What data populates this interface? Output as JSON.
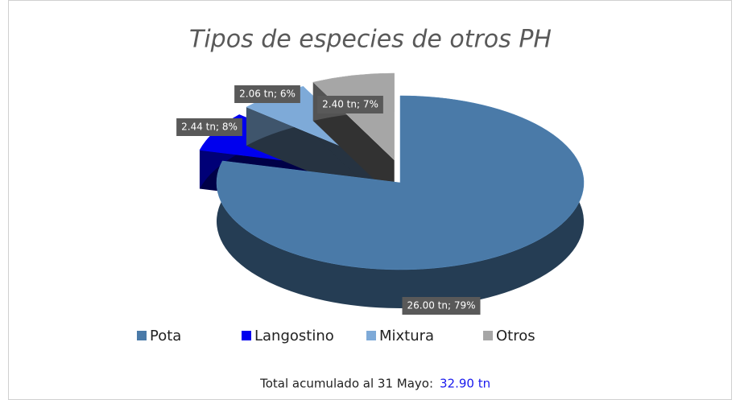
{
  "chart_data": {
    "type": "pie",
    "title": "Tipos de especies de otros PH",
    "categories": [
      "Pota",
      "Langostino",
      "Mixtura",
      "Otros"
    ],
    "values": [
      26.0,
      2.44,
      2.06,
      2.4
    ],
    "value_labels": [
      "26.00 tn; 79%",
      "2.44 tn; 8%",
      "2.06 tn; 6%",
      "2.40 tn; 7%"
    ],
    "colors": [
      "#4a7aa8",
      "#0000ee",
      "#7eaad8",
      "#a6a6a6"
    ],
    "legend": "bottom",
    "footer": {
      "label": "Total acumulado al 31 Mayo:",
      "value": "32.90 tn"
    }
  }
}
